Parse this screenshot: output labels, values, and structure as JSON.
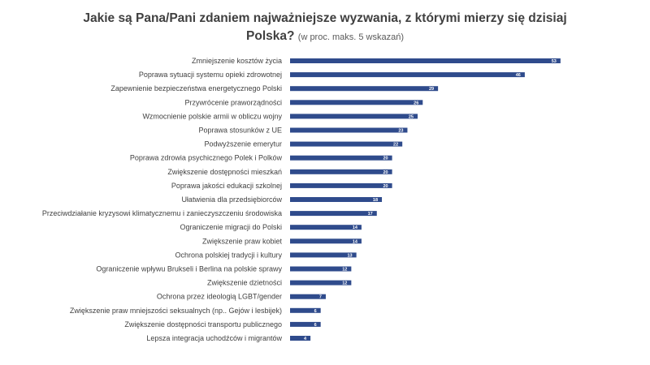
{
  "chart_data": {
    "type": "bar",
    "orientation": "horizontal",
    "title": "Jakie są Pana/Pani zdaniem najważniejsze wyzwania, z którymi mierzy się dzisiaj",
    "title_line2": "Polska?",
    "subtitle": "(w proc. maks. 5 wskazań)",
    "categories": [
      "Zmniejszenie kosztów życia",
      "Poprawa sytuacji systemu opieki zdrowotnej",
      "Zapewnienie bezpieczeństwa energetycznego Polski",
      "Przywrócenie praworządności",
      "Wzmocnienie polskie armii w obliczu wojny",
      "Poprawa stosunków z UE",
      "Podwyższenie emerytur",
      "Poprawa zdrowia psychicznego Polek i Polków",
      "Zwiększenie dostępności mieszkań",
      "Poprawa jakości edukacji szkolnej",
      "Ułatwienia dla przedsiębiorców",
      "Przeciwdziałanie kryzysowi klimatycznemu i zanieczyszczeniu środowiska",
      "Ograniczenie migracji do Polski",
      "Zwiększenie praw kobiet",
      "Ochrona polskiej tradycji i kultury",
      "Ograniczenie wpływu Brukseli i Berlina na polskie sprawy",
      "Zwiększenie dzietności",
      "Ochrona przez ideologią LGBT/gender",
      "Zwiększenie praw mniejszości seksualnych (np.. Gejów i lesbijek)",
      "Zwiększenie dostępności transportu publicznego",
      "Lepsza integracja uchodźców i migrantów"
    ],
    "values": [
      53,
      46,
      29,
      26,
      25,
      23,
      22,
      20,
      20,
      20,
      18,
      17,
      14,
      14,
      13,
      12,
      12,
      7,
      6,
      6,
      4
    ],
    "xlim": [
      0,
      60
    ],
    "grid": false,
    "legend": "none",
    "bar_color": "#2F4B8C",
    "label_color": "#ffffff"
  }
}
